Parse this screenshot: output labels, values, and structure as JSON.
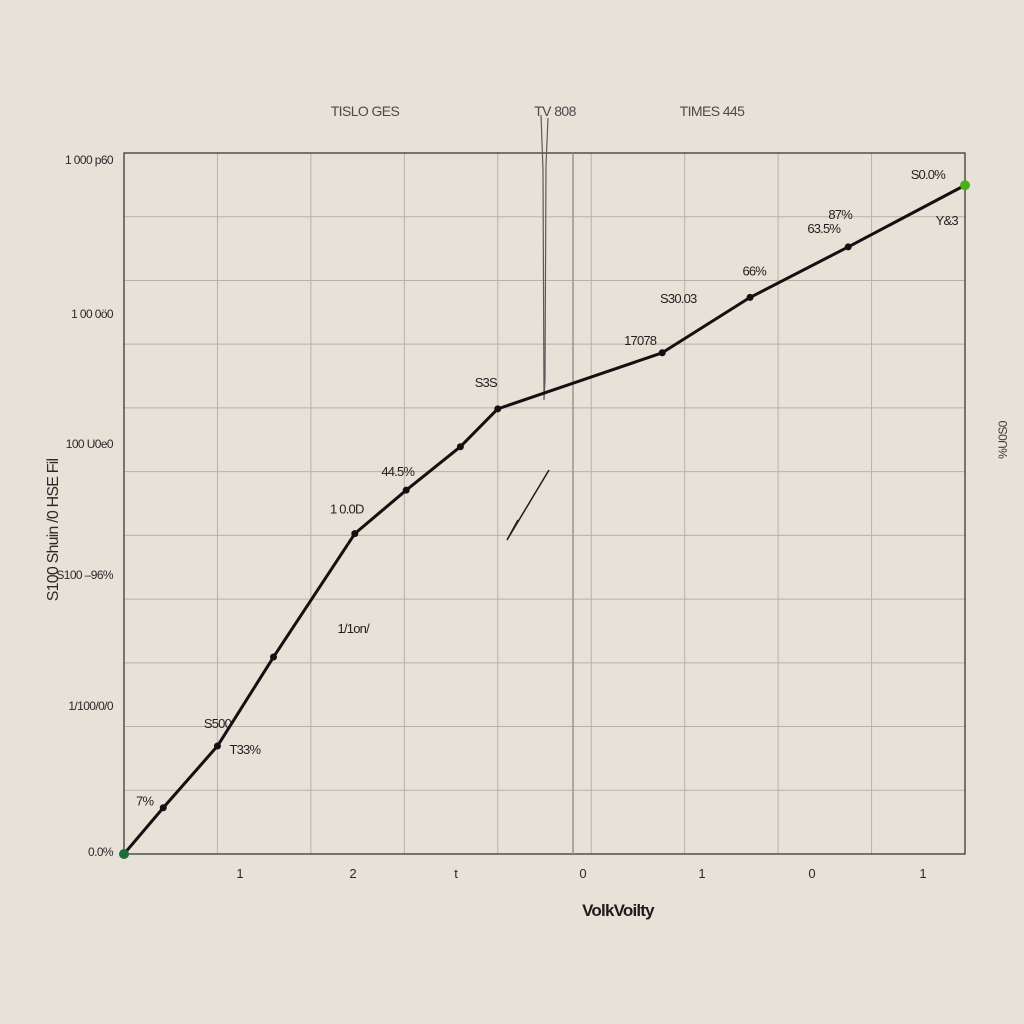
{
  "chart_data": {
    "type": "line",
    "title": "",
    "xlabel": "VolkVoilty",
    "ylabel": "S100 Shuin /0 HSE Fil",
    "right_label": "%U0S0",
    "top_labels": [
      "TISLO GES",
      "TV 808",
      "TIMES 445"
    ],
    "x_ticks": [
      "1",
      "2",
      "t",
      "0",
      "1",
      "0",
      "1"
    ],
    "y_ticks": [
      "0.0%",
      "1/100/0/0",
      "S100 –96%",
      "100 U0e0",
      "1 00 0ö0",
      "1 000 p60"
    ],
    "xlim": [
      0,
      9
    ],
    "ylim": [
      0,
      100
    ],
    "grid": true,
    "legend": "none",
    "line_color": "#111111",
    "start_marker_color": "#1f6b3a",
    "end_marker_color": "#4caf1a",
    "series": [
      {
        "x": [
          0,
          0.42,
          1.0,
          1.6,
          2.47,
          3.02,
          3.6,
          4.0,
          5.76,
          6.7,
          7.75,
          9.0
        ],
        "y": [
          0.0,
          6.6,
          15.4,
          28.1,
          45.7,
          51.9,
          58.1,
          63.5,
          71.5,
          79.4,
          86.6,
          95.4
        ],
        "labels": [
          {
            "x": 0.42,
            "y": 6.6,
            "text": "7%"
          },
          {
            "x": 1.0,
            "y": 15.4,
            "text": "S500"
          },
          {
            "x": 1.0,
            "y": 15.4,
            "text": "T33%"
          },
          {
            "x": 2.05,
            "y": 31.5,
            "text": "1/1on/"
          },
          {
            "x": 2.47,
            "y": 45.7,
            "text": "1 0.0D"
          },
          {
            "x": 3.02,
            "y": 51.9,
            "text": "44.5%"
          },
          {
            "x": 4.0,
            "y": 63.5,
            "text": "S3S"
          },
          {
            "x": 5.76,
            "y": 71.5,
            "text": "17078"
          },
          {
            "x": 5.76,
            "y": 71.5,
            "text": "S30.03"
          },
          {
            "x": 6.7,
            "y": 79.4,
            "text": "66%"
          },
          {
            "x": 7.75,
            "y": 86.6,
            "text": "63.5%"
          },
          {
            "x": 7.75,
            "y": 86.6,
            "text": "87%"
          },
          {
            "x": 8.6,
            "y": 88.9,
            "text": "Y&3"
          },
          {
            "x": 9.0,
            "y": 95.4,
            "text": "S0.0%"
          }
        ]
      }
    ]
  }
}
